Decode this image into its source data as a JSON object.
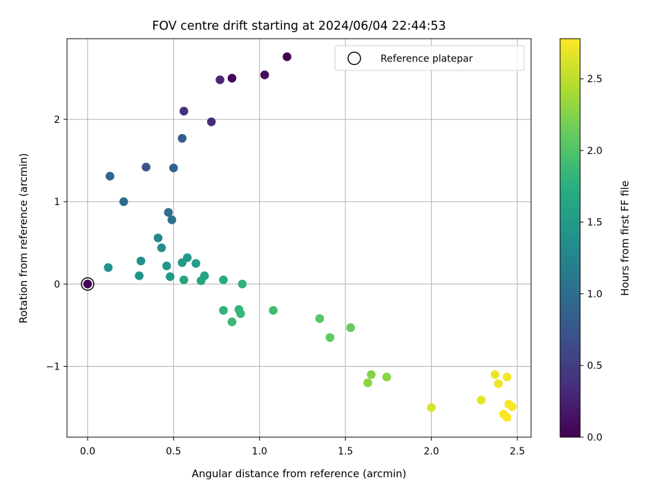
{
  "chart_data": {
    "type": "scatter",
    "title": "FOV centre drift starting at 2024/06/04 22:44:53",
    "xlabel": "Angular distance from reference (arcmin)",
    "ylabel": "Rotation from reference (arcmin)",
    "xlim": [
      -0.12,
      2.58
    ],
    "ylim": [
      -1.86,
      2.98
    ],
    "xticks": [
      0.0,
      0.5,
      1.0,
      1.5,
      2.0,
      2.5
    ],
    "xtick_labels": [
      "0.0",
      "0.5",
      "1.0",
      "1.5",
      "2.0",
      "2.5"
    ],
    "yticks": [
      -1,
      0,
      1,
      2
    ],
    "ytick_labels": [
      "−1",
      "0",
      "1",
      "2"
    ],
    "grid": true,
    "legend": {
      "placement": "top-right",
      "entries": [
        "Reference platepar"
      ]
    },
    "colorbar": {
      "label": "Hours from first FF file",
      "range": [
        0.0,
        2.78
      ],
      "ticks": [
        0.0,
        0.5,
        1.0,
        1.5,
        2.0,
        2.5
      ],
      "tick_labels": [
        "0.0",
        "0.5",
        "1.0",
        "1.5",
        "2.0",
        "2.5"
      ],
      "colormap": "viridis"
    },
    "reference_point": {
      "x": 0.0,
      "y": 0.0
    },
    "points": [
      {
        "x": 0.0,
        "y": 0.0,
        "c": 0.0
      },
      {
        "x": 1.16,
        "y": 2.76,
        "c": 0.0
      },
      {
        "x": 0.84,
        "y": 2.5,
        "c": 0.05
      },
      {
        "x": 1.03,
        "y": 2.54,
        "c": 0.08
      },
      {
        "x": 0.77,
        "y": 2.48,
        "c": 0.3
      },
      {
        "x": 0.56,
        "y": 2.1,
        "c": 0.37
      },
      {
        "x": 0.72,
        "y": 1.97,
        "c": 0.33
      },
      {
        "x": 0.55,
        "y": 1.77,
        "c": 0.8
      },
      {
        "x": 0.34,
        "y": 1.42,
        "c": 0.75
      },
      {
        "x": 0.5,
        "y": 1.41,
        "c": 0.84
      },
      {
        "x": 0.13,
        "y": 1.31,
        "c": 0.9
      },
      {
        "x": 0.21,
        "y": 1.0,
        "c": 0.97
      },
      {
        "x": 0.47,
        "y": 0.87,
        "c": 0.98
      },
      {
        "x": 0.49,
        "y": 0.78,
        "c": 1.02
      },
      {
        "x": 0.41,
        "y": 0.56,
        "c": 1.3
      },
      {
        "x": 0.43,
        "y": 0.44,
        "c": 1.34
      },
      {
        "x": 0.12,
        "y": 0.2,
        "c": 1.4
      },
      {
        "x": 0.31,
        "y": 0.28,
        "c": 1.38
      },
      {
        "x": 0.3,
        "y": 0.1,
        "c": 1.43
      },
      {
        "x": 0.46,
        "y": 0.22,
        "c": 1.45
      },
      {
        "x": 0.48,
        "y": 0.09,
        "c": 1.47
      },
      {
        "x": 0.55,
        "y": 0.26,
        "c": 1.5
      },
      {
        "x": 0.58,
        "y": 0.32,
        "c": 1.48
      },
      {
        "x": 0.63,
        "y": 0.25,
        "c": 1.52
      },
      {
        "x": 0.56,
        "y": 0.05,
        "c": 1.62
      },
      {
        "x": 0.66,
        "y": 0.04,
        "c": 1.65
      },
      {
        "x": 0.68,
        "y": 0.1,
        "c": 1.6
      },
      {
        "x": 0.79,
        "y": 0.05,
        "c": 1.72
      },
      {
        "x": 0.9,
        "y": 0.0,
        "c": 1.78
      },
      {
        "x": 0.79,
        "y": -0.32,
        "c": 1.8
      },
      {
        "x": 0.88,
        "y": -0.31,
        "c": 1.82
      },
      {
        "x": 0.89,
        "y": -0.36,
        "c": 1.84
      },
      {
        "x": 0.84,
        "y": -0.46,
        "c": 1.86
      },
      {
        "x": 1.08,
        "y": -0.32,
        "c": 1.9
      },
      {
        "x": 1.35,
        "y": -0.42,
        "c": 2.05
      },
      {
        "x": 1.41,
        "y": -0.65,
        "c": 2.08
      },
      {
        "x": 1.53,
        "y": -0.53,
        "c": 2.12
      },
      {
        "x": 1.65,
        "y": -1.1,
        "c": 2.25
      },
      {
        "x": 1.74,
        "y": -1.13,
        "c": 2.28
      },
      {
        "x": 1.63,
        "y": -1.2,
        "c": 2.3
      },
      {
        "x": 2.0,
        "y": -1.5,
        "c": 2.62
      },
      {
        "x": 2.29,
        "y": -1.41,
        "c": 2.68
      },
      {
        "x": 2.37,
        "y": -1.1,
        "c": 2.7
      },
      {
        "x": 2.39,
        "y": -1.21,
        "c": 2.72
      },
      {
        "x": 2.44,
        "y": -1.13,
        "c": 2.74
      },
      {
        "x": 2.45,
        "y": -1.46,
        "c": 2.75
      },
      {
        "x": 2.47,
        "y": -1.49,
        "c": 2.76
      },
      {
        "x": 2.42,
        "y": -1.58,
        "c": 2.77
      },
      {
        "x": 2.44,
        "y": -1.62,
        "c": 2.78
      }
    ]
  }
}
